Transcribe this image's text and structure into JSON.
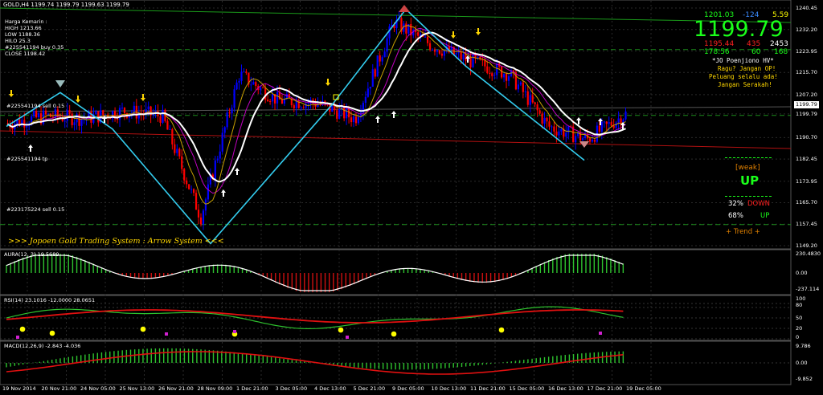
{
  "header": {
    "symbol_line": "GOLD,H4  1199.74 1199.79 1199.63 1199.79",
    "info": [
      "Harga Kemarin :",
      "HIGH 1213.66",
      "LOW 1188.36",
      "HILO 25.3",
      "#225541194 buy 0.35",
      "CLOSE 1198.42"
    ]
  },
  "price_panel": {
    "row1": {
      "a": "1201.03",
      "b": "-124",
      "c": "5.59"
    },
    "big_price": "1199.79",
    "row3": {
      "a": "1195.44",
      "b": "435",
      "c": "2453"
    },
    "row4": {
      "a": "178:56",
      "b": "60",
      "c": "168"
    },
    "motto": [
      "*JO Poenjiono HV*",
      "Ragu? Jangan OP!",
      "Peluang selalu ada!",
      "Jangan Serakah!"
    ],
    "signal_label": "[weak]",
    "signal_value": "UP",
    "down_pct": "32%",
    "down_label": "DOWN",
    "up_pct": "68%",
    "up_label": "UP",
    "trend_label": "+ Trend +"
  },
  "chart_labels": {
    "order_sell_1": "#225541194 sell 0.15",
    "order_tp": "#225541194 tp",
    "order_sell_2": "#223175224 sell 0.15",
    "system_title": ">>> Jopoen Gold Trading System : Arrow System <<<"
  },
  "price_axis": {
    "ticks": [
      "1240.45",
      "1232.20",
      "1223.95",
      "1215.70",
      "1207.20",
      "1199.79",
      "1190.70",
      "1182.45",
      "1173.95",
      "1165.70",
      "1157.45",
      "1149.20"
    ],
    "current": "1199.79"
  },
  "aura": {
    "label": "AURA(12, 3) 19.5689",
    "ticks": [
      "230.4830",
      "0.00",
      "-237.114"
    ]
  },
  "rsi": {
    "label": "RSI(14) 23.1016 -12.0000 28.0651",
    "ticks": [
      "100",
      "80",
      "50",
      "20",
      "0"
    ]
  },
  "macd": {
    "label": "MACD(12,26,9) -2.843 -4.036",
    "ticks": [
      "9.786",
      "0.00",
      "-9.852"
    ]
  },
  "time_axis": [
    "19 Nov 2014",
    "20 Nov 21:00",
    "24 Nov 05:00",
    "25 Nov 13:00",
    "26 Nov 21:00",
    "28 Nov 09:00",
    "1 Dec 21:00",
    "3 Dec 05:00",
    "4 Dec 13:00",
    "5 Dec 21:00",
    "9 Dec 05:00",
    "10 Dec 13:00",
    "11 Dec 21:00",
    "15 Dec 05:00",
    "16 Dec 13:00",
    "17 Dec 21:00",
    "19 Dec 05:00"
  ],
  "colors": {
    "bull": "#0000ff",
    "bear": "#ff0000",
    "zigzag": "#33ccee",
    "ma_main": "#ffffff",
    "ma_fast": "#c8a000",
    "ma_slow": "#c000c0",
    "grid": "#2a2a2a",
    "level": "#1a8a1a",
    "panel_text": "#d0d0d0",
    "big_price": "#1aff1a",
    "motto": "#ffd700"
  },
  "chart_data": {
    "type": "line",
    "title": "GOLD,H4",
    "x": [
      "19 Nov 2014",
      "20 Nov 21:00",
      "24 Nov 05:00",
      "25 Nov 13:00",
      "26 Nov 21:00",
      "28 Nov 09:00",
      "1 Dec 21:00",
      "3 Dec 05:00",
      "4 Dec 13:00",
      "5 Dec 21:00",
      "9 Dec 05:00",
      "10 Dec 13:00",
      "11 Dec 21:00",
      "15 Dec 05:00",
      "16 Dec 13:00",
      "17 Dec 21:00",
      "19 Dec 05:00"
    ],
    "series": [
      {
        "values": [
          1196,
          1199,
          1198,
          1201,
          1199,
          1160,
          1215,
          1205,
          1204,
          1198,
          1235,
          1226,
          1220,
          1215,
          1195,
          1190,
          1199.79
        ]
      }
    ],
    "ylim": [
      1149.2,
      1240.45
    ],
    "zigzag_points": [
      1195,
      1208,
      1194,
      1150,
      1204,
      1240,
      1218,
      1182
    ]
  }
}
